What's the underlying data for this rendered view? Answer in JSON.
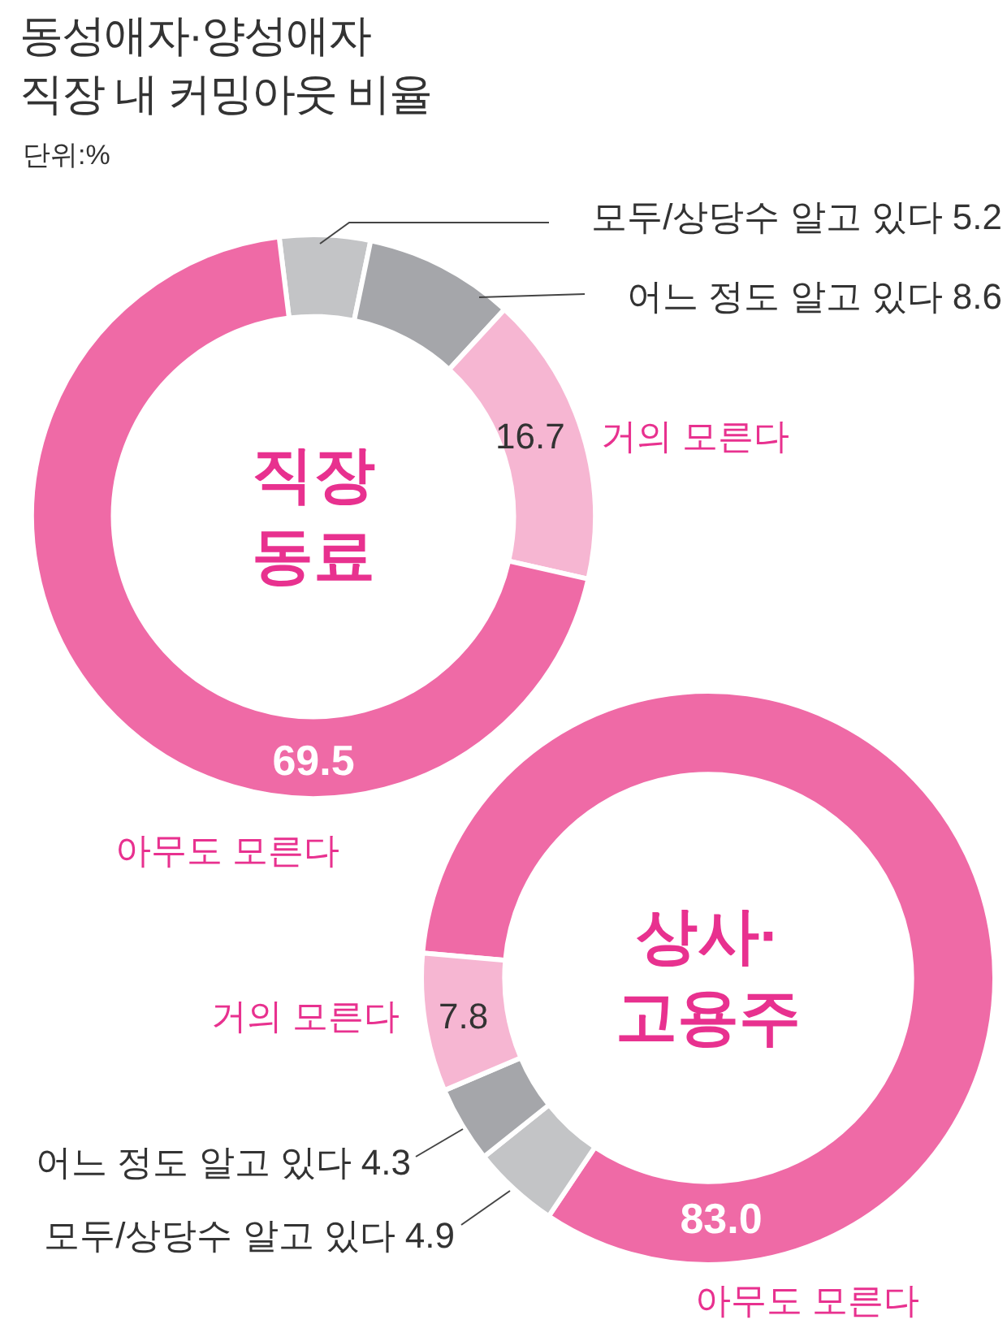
{
  "chart_data": [
    {
      "type": "donut",
      "title": "동성애자·양성애자\n직장 내 커밍아웃 비율",
      "subtitle": "단위:%",
      "annotations": [
        "직장\n동료"
      ],
      "categories": [
        "모두/상당수 알고 있다",
        "어느 정도 알고 있다",
        "거의 모른다",
        "아무도 모른다"
      ],
      "values": [
        5.2,
        8.6,
        16.7,
        69.5
      ],
      "colors": [
        "#c3c4c6",
        "#a5a6aa",
        "#f6b6d2",
        "#ef6aa6"
      ],
      "value_labels": [
        "5.2",
        "8.6",
        "16.7",
        "69.5"
      ],
      "legend": false
    },
    {
      "type": "donut",
      "annotations": [
        "상사·\n고용주"
      ],
      "categories": [
        "아무도 모른다",
        "모두/상당수 알고 있다",
        "어느 정도 알고 있다",
        "거의 모른다"
      ],
      "values": [
        83.0,
        4.9,
        4.3,
        7.8
      ],
      "colors": [
        "#ef6aa6",
        "#c3c4c6",
        "#a5a6aa",
        "#f6b6d2"
      ],
      "value_labels": [
        "83.0",
        "4.9",
        "4.3",
        "7.8"
      ],
      "legend": false
    }
  ]
}
